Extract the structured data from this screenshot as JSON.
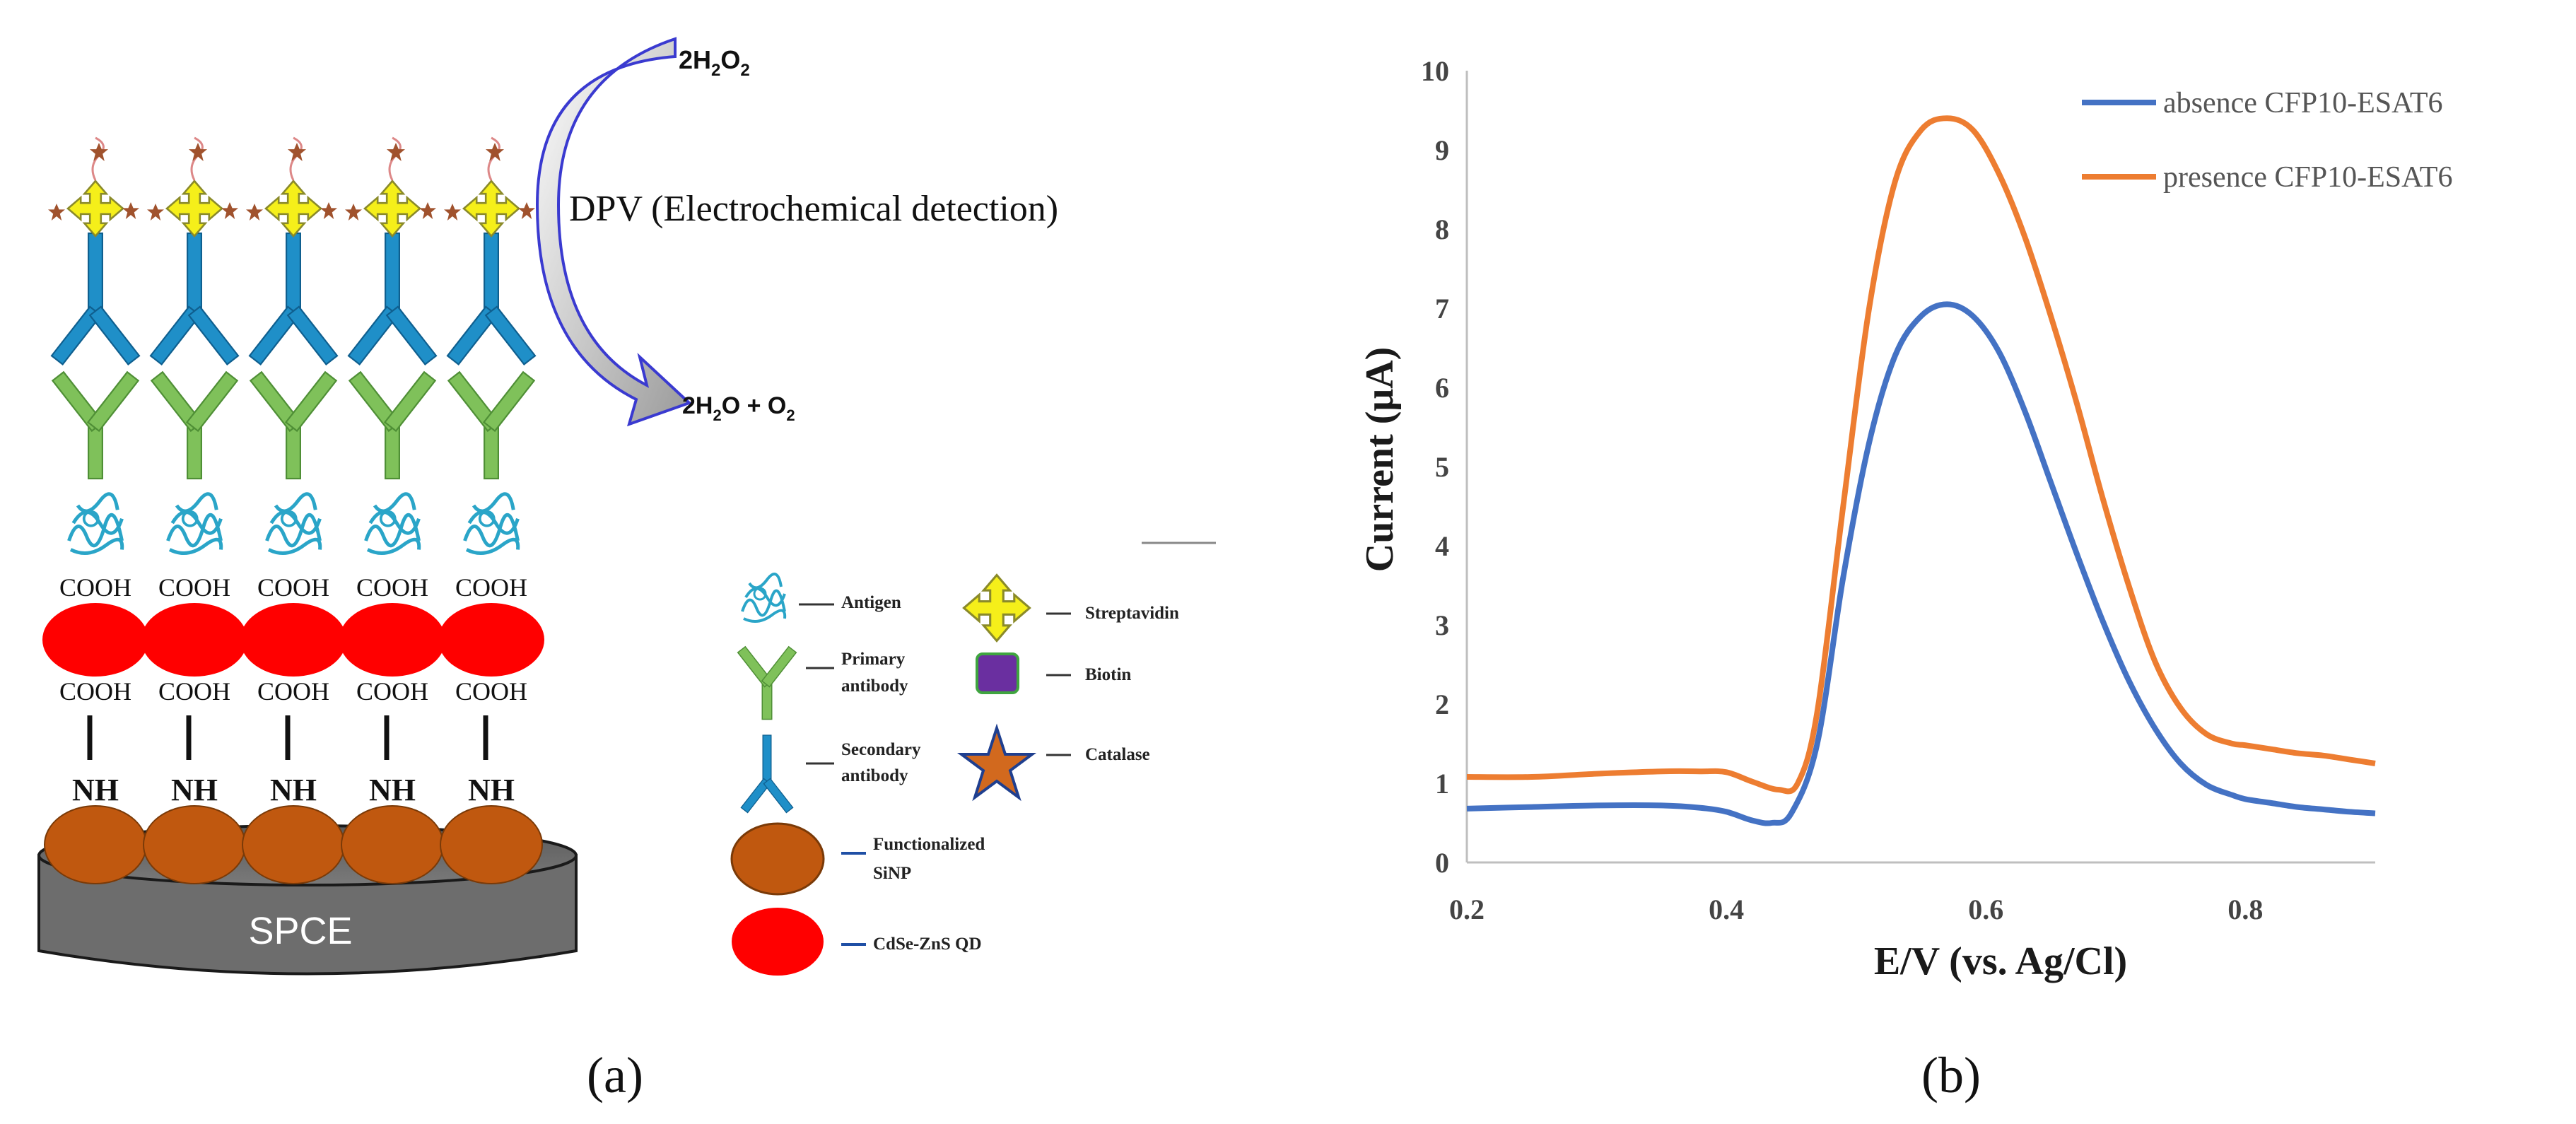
{
  "panel_a": {
    "caption": "(a)",
    "electrode_label": "SPCE",
    "cooh_label": "COOH",
    "nh_label": "NH",
    "reaction_in": "2H",
    "reaction_in_sub1": "2",
    "reaction_in_mid": "O",
    "reaction_in_sub2": "2",
    "reaction_out_a": "2H",
    "reaction_out_sub1": "2",
    "reaction_out_b": "O + O",
    "reaction_out_sub2": "2",
    "detection_label": "DPV (Electrochemical detection)",
    "legend": {
      "antigen": "Antigen",
      "primary_1": "Primary",
      "primary_2": "antibody",
      "secondary_1": "Secondary",
      "secondary_2": "antibody",
      "streptavidin": "Streptavidin",
      "biotin": "Biotin",
      "catalase": "Catalase",
      "sinp_1": "Functionalized",
      "sinp_2": "SiNP",
      "qd": "CdSe-ZnS QD"
    },
    "colors": {
      "qd": "#ff0000",
      "sinp": "#c0580f",
      "electrode": "#6d6d6d",
      "primary": "#7fc15a",
      "secondary": "#1f8fc8",
      "streptavidin": "#f5ef1a",
      "biotin": "#6a2fa0",
      "catalase": "#d2691e"
    }
  },
  "panel_b": {
    "caption": "(b)"
  },
  "chart_data": {
    "type": "line",
    "title": "",
    "xlabel": "E/V (vs. Ag/Cl)",
    "ylabel": "Current (μA)",
    "xlim": [
      0.2,
      0.9
    ],
    "ylim": [
      0,
      10
    ],
    "xticks": [
      "0.2",
      "0.4",
      "0.6",
      "0.8"
    ],
    "yticks": [
      "0",
      "1",
      "2",
      "3",
      "4",
      "5",
      "6",
      "7",
      "8",
      "9",
      "10"
    ],
    "legend_position": "top-right",
    "series": [
      {
        "name": "absence  CFP10-ESAT6",
        "color": "#4472c4",
        "x": [
          0.2,
          0.25,
          0.3,
          0.35,
          0.38,
          0.4,
          0.42,
          0.435,
          0.45,
          0.47,
          0.49,
          0.51,
          0.53,
          0.55,
          0.57,
          0.59,
          0.61,
          0.63,
          0.65,
          0.67,
          0.69,
          0.71,
          0.73,
          0.75,
          0.77,
          0.79,
          0.8,
          0.82,
          0.84,
          0.86,
          0.88,
          0.9
        ],
        "y": [
          0.68,
          0.7,
          0.72,
          0.72,
          0.69,
          0.64,
          0.53,
          0.5,
          0.62,
          1.5,
          3.6,
          5.3,
          6.4,
          6.9,
          7.05,
          6.9,
          6.45,
          5.7,
          4.8,
          3.9,
          3.05,
          2.3,
          1.7,
          1.25,
          0.98,
          0.85,
          0.8,
          0.75,
          0.7,
          0.67,
          0.64,
          0.62
        ]
      },
      {
        "name": "presence CFP10-ESAT6",
        "color": "#ed7d31",
        "x": [
          0.2,
          0.25,
          0.3,
          0.35,
          0.38,
          0.4,
          0.42,
          0.44,
          0.455,
          0.47,
          0.49,
          0.51,
          0.53,
          0.55,
          0.57,
          0.59,
          0.61,
          0.63,
          0.65,
          0.67,
          0.69,
          0.71,
          0.73,
          0.75,
          0.77,
          0.79,
          0.8,
          0.82,
          0.84,
          0.86,
          0.88,
          0.9
        ],
        "y": [
          1.08,
          1.08,
          1.12,
          1.15,
          1.15,
          1.14,
          1.02,
          0.92,
          1.0,
          1.9,
          4.5,
          7.0,
          8.6,
          9.25,
          9.4,
          9.25,
          8.7,
          7.9,
          6.9,
          5.8,
          4.6,
          3.5,
          2.55,
          1.95,
          1.62,
          1.5,
          1.48,
          1.43,
          1.38,
          1.35,
          1.3,
          1.25
        ]
      }
    ]
  }
}
